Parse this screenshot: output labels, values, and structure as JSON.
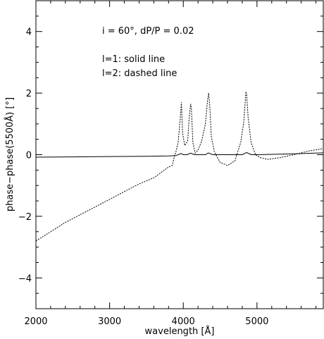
{
  "chart_data": {
    "type": "line",
    "xlabel": "wavelength [Å]",
    "ylabel": "phase−phase(5500Å) [°]",
    "xlim": [
      2000,
      5900
    ],
    "ylim": [
      -5,
      5
    ],
    "x_ticks": [
      2000,
      3000,
      4000,
      5000
    ],
    "y_ticks": [
      4,
      2,
      0,
      -2,
      -4
    ],
    "grid": false,
    "annotations": [
      "i = 60°, dP/P = 0.02",
      "l=1: solid line",
      "l=2: dashed line"
    ],
    "series": [
      {
        "name": "l=1",
        "style": "solid",
        "x": [
          2000,
          2500,
          3000,
          3500,
          3800,
          3900,
          3970,
          4000,
          4050,
          4100,
          4150,
          4300,
          4340,
          4400,
          4600,
          4800,
          4860,
          4920,
          5000,
          5500,
          5900
        ],
        "y": [
          -0.08,
          -0.07,
          -0.06,
          -0.05,
          -0.04,
          -0.03,
          0.04,
          0.0,
          0.0,
          0.05,
          0.0,
          0.0,
          0.06,
          0.0,
          0.0,
          0.0,
          0.07,
          0.0,
          0.0,
          0.03,
          0.06
        ]
      },
      {
        "name": "l=2",
        "style": "dashed",
        "x": [
          2000,
          2200,
          2400,
          2600,
          2800,
          3000,
          3200,
          3400,
          3600,
          3800,
          3850,
          3880,
          3900,
          3930,
          3960,
          3975,
          3990,
          4020,
          4060,
          4080,
          4100,
          4110,
          4130,
          4160,
          4200,
          4250,
          4300,
          4330,
          4345,
          4360,
          4380,
          4420,
          4500,
          4600,
          4700,
          4780,
          4820,
          4850,
          4860,
          4880,
          4920,
          4980,
          5050,
          5150,
          5300,
          5500,
          5700,
          5900
        ],
        "y": [
          -2.8,
          -2.5,
          -2.2,
          -1.95,
          -1.7,
          -1.45,
          -1.2,
          -0.95,
          -0.75,
          -0.4,
          -0.35,
          -0.05,
          0.1,
          0.4,
          1.2,
          1.7,
          0.7,
          0.3,
          0.45,
          1.2,
          1.65,
          1.5,
          0.4,
          0.05,
          0.15,
          0.45,
          1.0,
          1.8,
          2.0,
          1.55,
          0.6,
          0.1,
          -0.25,
          -0.35,
          -0.2,
          0.4,
          1.05,
          2.05,
          1.95,
          1.2,
          0.4,
          0.0,
          -0.1,
          -0.15,
          -0.1,
          0.0,
          0.12,
          0.2
        ]
      }
    ]
  }
}
